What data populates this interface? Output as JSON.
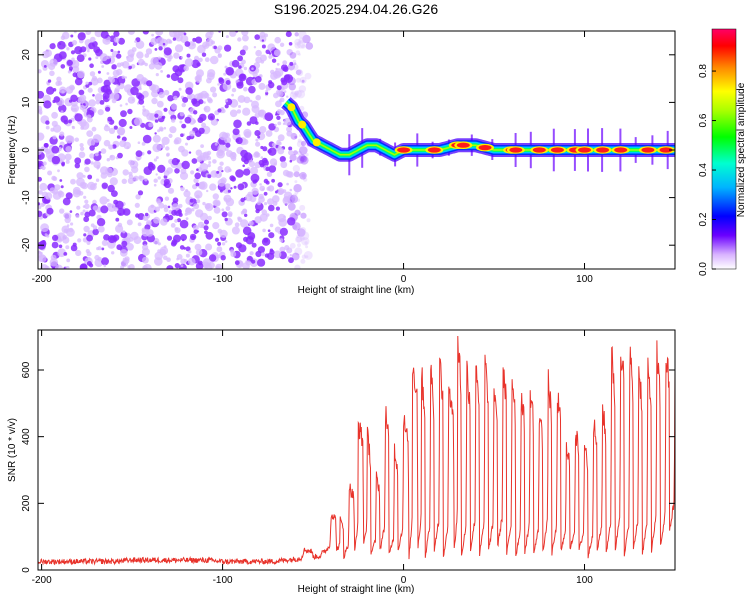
{
  "title": "S196.2025.294.04.26.G26",
  "chart_data": [
    {
      "type": "heatmap",
      "name": "spectrogram",
      "xlabel": "Height of straight line (km)",
      "ylabel": "Frequency (Hz)",
      "xlim": [
        -202,
        150
      ],
      "ylim": [
        -25,
        25
      ],
      "xticks": [
        -200,
        -100,
        0,
        100
      ],
      "yticks": [
        -20,
        -10,
        0,
        10,
        20
      ],
      "noise_region_x": [
        -202,
        -62
      ],
      "signal_track": {
        "x": [
          -65,
          -62,
          -58,
          -55,
          -50,
          -45,
          -40,
          -35,
          -30,
          -25,
          -20,
          -15,
          -10,
          -5,
          0,
          10,
          20,
          30,
          40,
          50,
          60,
          70,
          80,
          90,
          100,
          110,
          120,
          130,
          140,
          150
        ],
        "freq_hz": [
          10,
          9,
          6,
          5,
          2,
          1,
          0,
          -1,
          -1,
          0,
          1,
          1,
          0,
          -1,
          0,
          0,
          0,
          1,
          1,
          0,
          0,
          0,
          0,
          0,
          0,
          0,
          0,
          0,
          0,
          0
        ]
      },
      "hot_spots_x": [
        0,
        17,
        30,
        33,
        45,
        60,
        62,
        75,
        85,
        95,
        100,
        110,
        120,
        135,
        145
      ],
      "colorbar": {
        "label": "Normalized spectral amplitude",
        "ticks": [
          0.0,
          0.2,
          0.4,
          0.6,
          0.8
        ],
        "range": [
          0.0,
          0.97
        ]
      }
    },
    {
      "type": "line",
      "name": "snr",
      "xlabel": "Height of straight line (km)",
      "ylabel": "SNR (10 * v/v)",
      "xlim": [
        -202,
        150
      ],
      "ylim": [
        0,
        720
      ],
      "xticks": [
        -200,
        -100,
        0,
        100
      ],
      "yticks": [
        0,
        200,
        400,
        600
      ],
      "color": "#e8332b",
      "series": [
        {
          "name": "SNR",
          "x": [
            -202,
            -150,
            -100,
            -65,
            -55,
            -50,
            -45,
            -40,
            -37,
            -35,
            -33,
            -30,
            -27,
            -25,
            -22,
            -20,
            -18,
            -15,
            -13,
            -10,
            -8,
            -5,
            -3,
            0,
            3,
            5,
            8,
            10,
            12,
            15,
            17,
            20,
            22,
            25,
            28,
            30,
            32,
            35,
            37,
            40,
            42,
            45,
            47,
            50,
            52,
            55,
            57,
            60,
            62,
            65,
            67,
            70,
            72,
            75,
            77,
            80,
            82,
            85,
            87,
            90,
            92,
            95,
            97,
            100,
            102,
            105,
            107,
            110,
            112,
            115,
            117,
            120,
            122,
            125,
            127,
            130,
            132,
            135,
            137,
            140,
            142,
            145,
            147,
            150
          ],
          "values": [
            25,
            30,
            25,
            30,
            60,
            40,
            50,
            170,
            60,
            150,
            40,
            250,
            60,
            440,
            80,
            400,
            50,
            280,
            60,
            480,
            45,
            360,
            60,
            450,
            40,
            620,
            70,
            580,
            40,
            600,
            60,
            620,
            40,
            560,
            60,
            680,
            40,
            600,
            60,
            620,
            45,
            620,
            60,
            550,
            70,
            600,
            50,
            580,
            40,
            520,
            55,
            540,
            50,
            470,
            60,
            560,
            50,
            520,
            60,
            380,
            60,
            420,
            60,
            380,
            40,
            440,
            60,
            480,
            50,
            640,
            60,
            680,
            40,
            650,
            60,
            600,
            50,
            600,
            60,
            640,
            70,
            650,
            120,
            600
          ]
        }
      ]
    }
  ]
}
